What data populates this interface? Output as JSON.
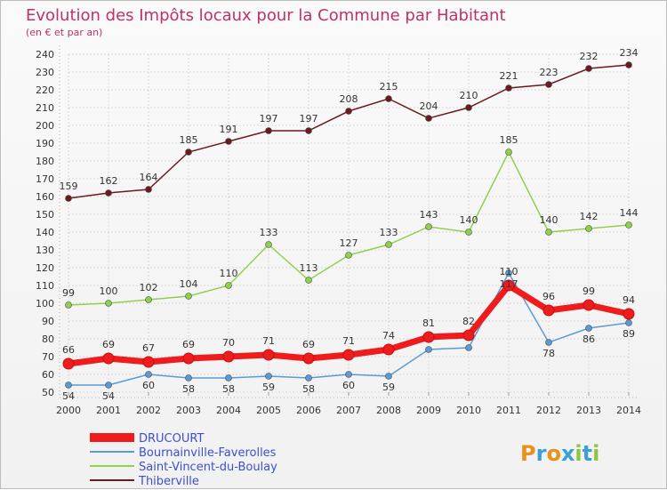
{
  "chart_data": {
    "type": "line",
    "title": "Evolution des Impôts locaux pour la Commune par Habitant",
    "subtitle": "(en € et par an)",
    "x": [
      "2000",
      "2001",
      "2002",
      "2003",
      "2004",
      "2005",
      "2006",
      "2007",
      "2008",
      "2009",
      "2010",
      "2011",
      "2012",
      "2013",
      "2014"
    ],
    "ylim": [
      50,
      240
    ],
    "yticks": [
      50,
      60,
      70,
      80,
      90,
      100,
      110,
      120,
      130,
      140,
      150,
      160,
      170,
      180,
      190,
      200,
      210,
      220,
      230,
      240
    ],
    "series": [
      {
        "name": "Thiberville",
        "color": "#6b1a1f",
        "values": [
          159,
          162,
          164,
          185,
          191,
          197,
          197,
          208,
          215,
          204,
          210,
          221,
          223,
          232,
          234
        ]
      },
      {
        "name": "Saint-Vincent-du-Boulay",
        "color": "#8fd14f",
        "values": [
          99,
          100,
          102,
          104,
          110,
          133,
          113,
          127,
          133,
          143,
          140,
          185,
          140,
          142,
          144
        ]
      },
      {
        "name": "Bournainville-Faverolles",
        "color": "#5b9bd5",
        "values": [
          54,
          54,
          60,
          58,
          58,
          59,
          58,
          60,
          59,
          74,
          75,
          117,
          78,
          86,
          89
        ]
      },
      {
        "name": "DRUCOURT",
        "color": "#ee1c1c",
        "values": [
          66,
          69,
          67,
          69,
          70,
          71,
          69,
          71,
          74,
          81,
          82,
          110,
          96,
          99,
          94
        ]
      }
    ],
    "value_labels": {
      "Thiberville": [
        "159",
        "162",
        "164",
        "185",
        "191",
        "197",
        "197",
        "208",
        "215",
        "204",
        "210",
        "221",
        "223",
        "232",
        "234"
      ],
      "Saint-Vincent-du-Boulay": [
        "99",
        "100",
        "102",
        "104",
        "110",
        "133",
        "113",
        "127",
        "133",
        "143",
        "140",
        "185",
        "140",
        "142",
        "144"
      ],
      "Bournainville-Faverolles": [
        "54",
        "54",
        "60",
        "58",
        "58",
        "59",
        "58",
        "60",
        "59",
        "",
        "",
        "117",
        "78",
        "86",
        "89"
      ],
      "DRUCOURT": [
        "66",
        "69",
        "67",
        "69",
        "70",
        "71",
        "69",
        "71",
        "74",
        "81",
        "82",
        "110",
        "96",
        "99",
        "94"
      ]
    },
    "legend": [
      "DRUCOURT",
      "Bournainville-Faverolles",
      "Saint-Vincent-du-Boulay",
      "Thiberville"
    ],
    "legend_position": "bottom-left",
    "grid": true
  },
  "logo": {
    "text": "Proxiti"
  }
}
